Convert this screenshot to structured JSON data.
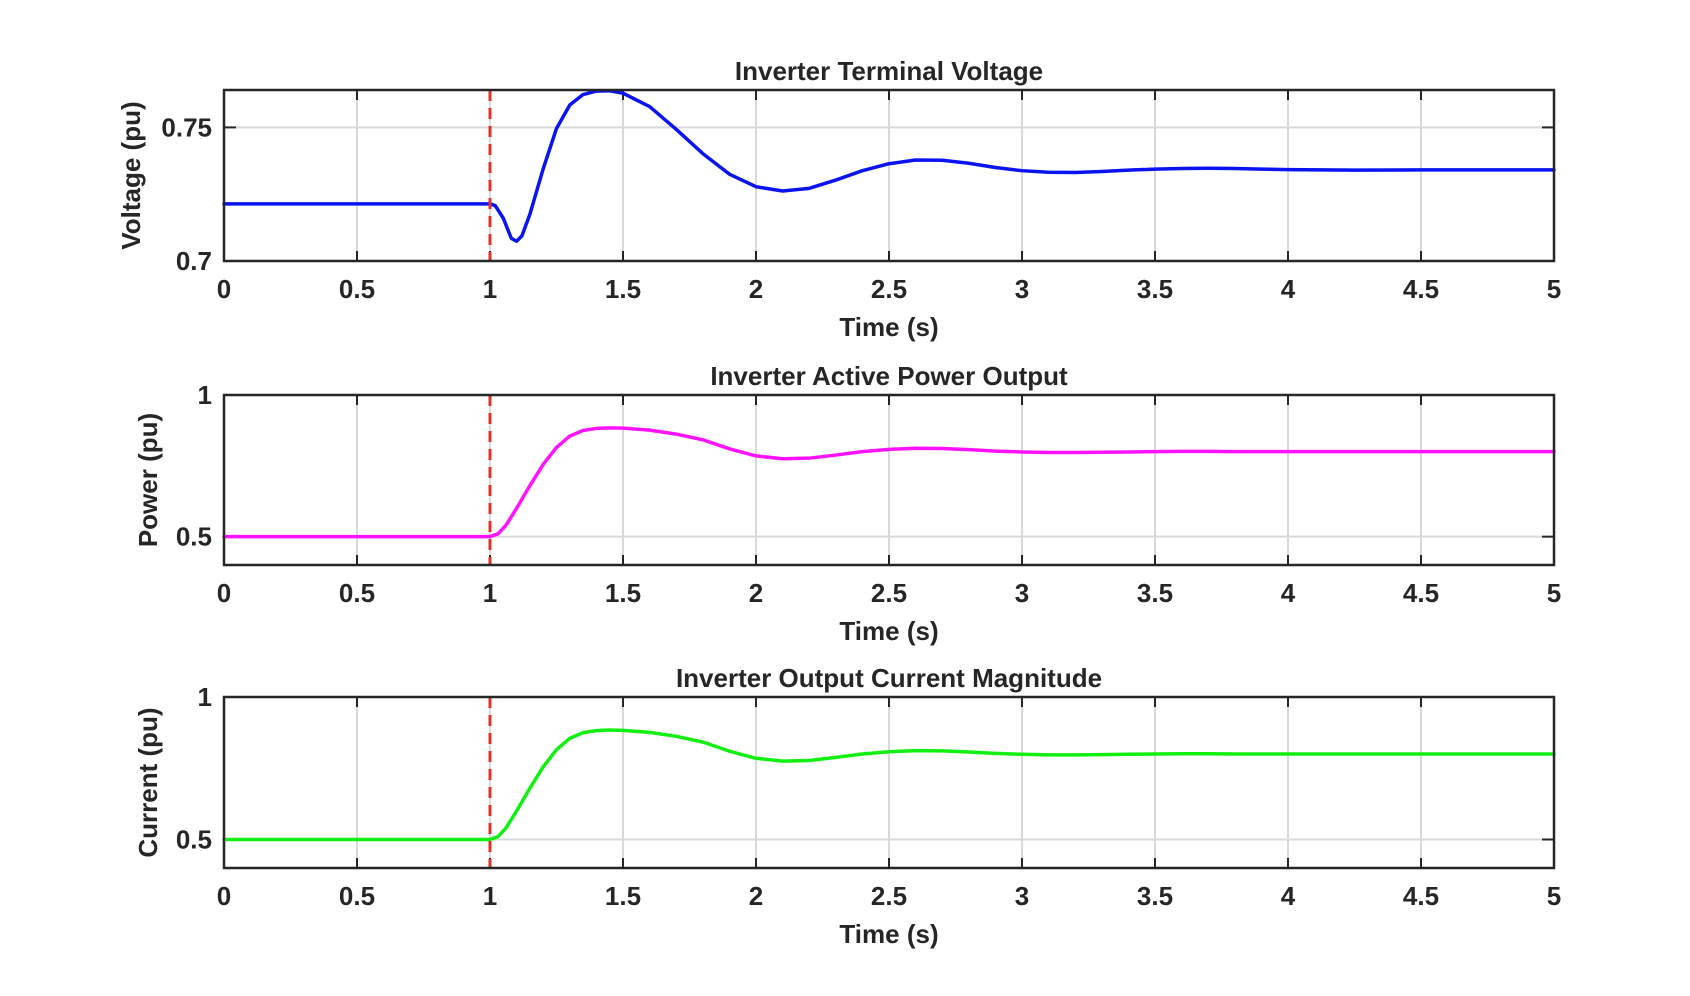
{
  "figure": {
    "background": "#ffffff",
    "axis_color": "#262626",
    "grid_color": "#d9d9d9",
    "event_line_color": "#e0302a"
  },
  "chart_data": [
    {
      "type": "line",
      "title": "Inverter Terminal Voltage",
      "xlabel": "Time (s)",
      "ylabel": "Voltage (pu)",
      "xlim": [
        0,
        5
      ],
      "ylim": [
        0.7,
        0.764
      ],
      "xticks": [
        "0",
        "0.5",
        "1",
        "1.5",
        "2",
        "2.5",
        "3",
        "3.5",
        "4",
        "4.5",
        "5"
      ],
      "yticks": [
        "0.7",
        "0.75"
      ],
      "grid": true,
      "event_line": {
        "x": 1,
        "style": "dashed",
        "color": "#e0302a"
      },
      "series": [
        {
          "color": "#0a14f0",
          "x": [
            0,
            0.25,
            0.5,
            0.75,
            1.0,
            1.02,
            1.05,
            1.08,
            1.1,
            1.12,
            1.15,
            1.2,
            1.25,
            1.3,
            1.35,
            1.4,
            1.45,
            1.5,
            1.6,
            1.7,
            1.8,
            1.9,
            2.0,
            2.1,
            2.2,
            2.3,
            2.4,
            2.5,
            2.6,
            2.7,
            2.8,
            2.9,
            3.0,
            3.1,
            3.2,
            3.3,
            3.4,
            3.5,
            3.6,
            3.7,
            3.8,
            3.9,
            4.0,
            4.25,
            4.5,
            4.75,
            5.0
          ],
          "y": [
            0.7214,
            0.7214,
            0.7214,
            0.7214,
            0.7214,
            0.7207,
            0.716,
            0.7085,
            0.7074,
            0.7094,
            0.7175,
            0.7345,
            0.7496,
            0.7584,
            0.7623,
            0.7636,
            0.7637,
            0.7628,
            0.7578,
            0.7493,
            0.7402,
            0.7325,
            0.7278,
            0.7262,
            0.7272,
            0.7303,
            0.7338,
            0.7364,
            0.7378,
            0.7377,
            0.7366,
            0.735,
            0.7338,
            0.7332,
            0.7331,
            0.7335,
            0.734,
            0.7344,
            0.7346,
            0.7347,
            0.7346,
            0.7344,
            0.7342,
            0.734,
            0.7341,
            0.7341,
            0.7341
          ]
        }
      ]
    },
    {
      "type": "line",
      "title": "Inverter Active Power Output",
      "xlabel": "Time (s)",
      "ylabel": "Power (pu)",
      "xlim": [
        0,
        5
      ],
      "ylim": [
        0.4,
        1.0
      ],
      "xticks": [
        "0",
        "0.5",
        "1",
        "1.5",
        "2",
        "2.5",
        "3",
        "3.5",
        "4",
        "4.5",
        "5"
      ],
      "yticks": [
        "0.5",
        "1"
      ],
      "grid": true,
      "event_line": {
        "x": 1,
        "style": "dashed",
        "color": "#e0302a"
      },
      "series": [
        {
          "color": "#ff12ff",
          "x": [
            0,
            0.25,
            0.5,
            0.75,
            1.0,
            1.03,
            1.06,
            1.1,
            1.15,
            1.2,
            1.25,
            1.3,
            1.35,
            1.4,
            1.45,
            1.5,
            1.6,
            1.7,
            1.8,
            1.9,
            2.0,
            2.1,
            2.2,
            2.3,
            2.4,
            2.5,
            2.6,
            2.7,
            2.8,
            2.9,
            3.0,
            3.1,
            3.2,
            3.3,
            3.4,
            3.5,
            3.6,
            3.7,
            3.8,
            3.9,
            4.0,
            4.25,
            4.5,
            4.75,
            5.0
          ],
          "y": [
            0.5,
            0.5,
            0.5,
            0.5,
            0.5,
            0.51,
            0.54,
            0.6,
            0.68,
            0.755,
            0.815,
            0.855,
            0.875,
            0.882,
            0.884,
            0.883,
            0.876,
            0.862,
            0.842,
            0.81,
            0.785,
            0.775,
            0.777,
            0.788,
            0.8,
            0.808,
            0.812,
            0.811,
            0.807,
            0.802,
            0.799,
            0.797,
            0.797,
            0.798,
            0.799,
            0.8,
            0.801,
            0.801,
            0.8,
            0.8,
            0.8,
            0.8,
            0.8,
            0.8,
            0.8
          ]
        }
      ]
    },
    {
      "type": "line",
      "title": "Inverter Output Current Magnitude",
      "xlabel": "Time (s)",
      "ylabel": "Current (pu)",
      "xlim": [
        0,
        5
      ],
      "ylim": [
        0.4,
        1.0
      ],
      "xticks": [
        "0",
        "0.5",
        "1",
        "1.5",
        "2",
        "2.5",
        "3",
        "3.5",
        "4",
        "4.5",
        "5"
      ],
      "yticks": [
        "0.5",
        "1"
      ],
      "grid": true,
      "event_line": {
        "x": 1,
        "style": "dashed",
        "color": "#e0302a"
      },
      "series": [
        {
          "color": "#12f012",
          "x": [
            0,
            0.25,
            0.5,
            0.75,
            1.0,
            1.03,
            1.06,
            1.1,
            1.15,
            1.2,
            1.25,
            1.3,
            1.35,
            1.4,
            1.45,
            1.5,
            1.6,
            1.7,
            1.8,
            1.9,
            2.0,
            2.1,
            2.2,
            2.3,
            2.4,
            2.5,
            2.6,
            2.7,
            2.8,
            2.9,
            3.0,
            3.1,
            3.2,
            3.3,
            3.4,
            3.5,
            3.6,
            3.7,
            3.8,
            3.9,
            4.0,
            4.25,
            4.5,
            4.75,
            5.0
          ],
          "y": [
            0.5,
            0.5,
            0.5,
            0.5,
            0.5,
            0.51,
            0.54,
            0.6,
            0.68,
            0.755,
            0.815,
            0.855,
            0.875,
            0.882,
            0.884,
            0.883,
            0.876,
            0.862,
            0.842,
            0.81,
            0.785,
            0.775,
            0.777,
            0.788,
            0.8,
            0.808,
            0.812,
            0.811,
            0.807,
            0.802,
            0.799,
            0.797,
            0.797,
            0.798,
            0.799,
            0.8,
            0.801,
            0.801,
            0.8,
            0.8,
            0.8,
            0.8,
            0.8,
            0.8,
            0.8
          ]
        }
      ]
    }
  ]
}
